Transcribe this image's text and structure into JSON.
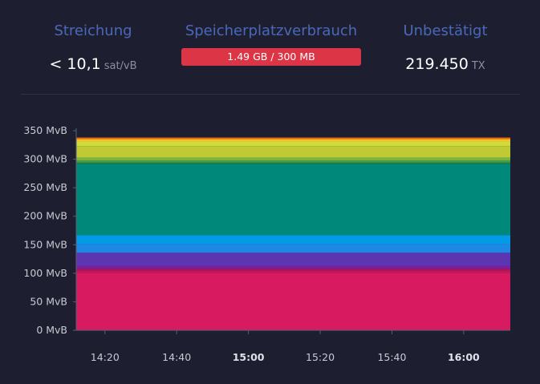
{
  "stats": {
    "fee": {
      "label": "Streichung",
      "value": "< 10,1",
      "unit": "sat/vB"
    },
    "memory": {
      "label": "Speicherplatzverbrauch",
      "value": "1.49 GB / 300 MB"
    },
    "unconfirmed": {
      "label": "Unbestätigt",
      "value": "219.450",
      "unit": "TX"
    }
  },
  "colors": {
    "background": "#1d1f31",
    "label": "#4a68b9",
    "memory_bar": "#dc3545",
    "axis": "#5a5d73"
  },
  "chart_data": {
    "type": "area",
    "stacked": true,
    "ylim": [
      0,
      350
    ],
    "y_ticks": [
      "0 MvB",
      "50 MvB",
      "100 MvB",
      "150 MvB",
      "200 MvB",
      "250 MvB",
      "300 MvB",
      "350 MvB"
    ],
    "x_ticks": [
      {
        "label": "14:20",
        "bold": false
      },
      {
        "label": "14:40",
        "bold": false
      },
      {
        "label": "15:00",
        "bold": true
      },
      {
        "label": "15:20",
        "bold": false
      },
      {
        "label": "15:40",
        "bold": false
      },
      {
        "label": "16:00",
        "bold": true
      }
    ],
    "x_range": [
      "14:12",
      "16:13"
    ],
    "grid": false,
    "series": [
      {
        "color": "#d81b60",
        "value": 101
      },
      {
        "color": "#c2185b",
        "value": 4
      },
      {
        "color": "#ad1457",
        "value": 3
      },
      {
        "color": "#7b1fa2",
        "value": 5
      },
      {
        "color": "#5e35b1",
        "value": 23
      },
      {
        "color": "#1e88e5",
        "value": 15
      },
      {
        "color": "#039be5",
        "value": 16
      },
      {
        "color": "#00897b",
        "value": 125
      },
      {
        "color": "#2e7d32",
        "value": 2
      },
      {
        "color": "#43a047",
        "value": 4
      },
      {
        "color": "#7cb342",
        "value": 5
      },
      {
        "color": "#c0ca33",
        "value": 20
      },
      {
        "color": "#cddc39",
        "value": 8
      },
      {
        "color": "#fbc02d",
        "value": 4
      },
      {
        "color": "#fb8c00",
        "value": 2
      },
      {
        "color": "#f4511e",
        "value": 1
      }
    ]
  }
}
